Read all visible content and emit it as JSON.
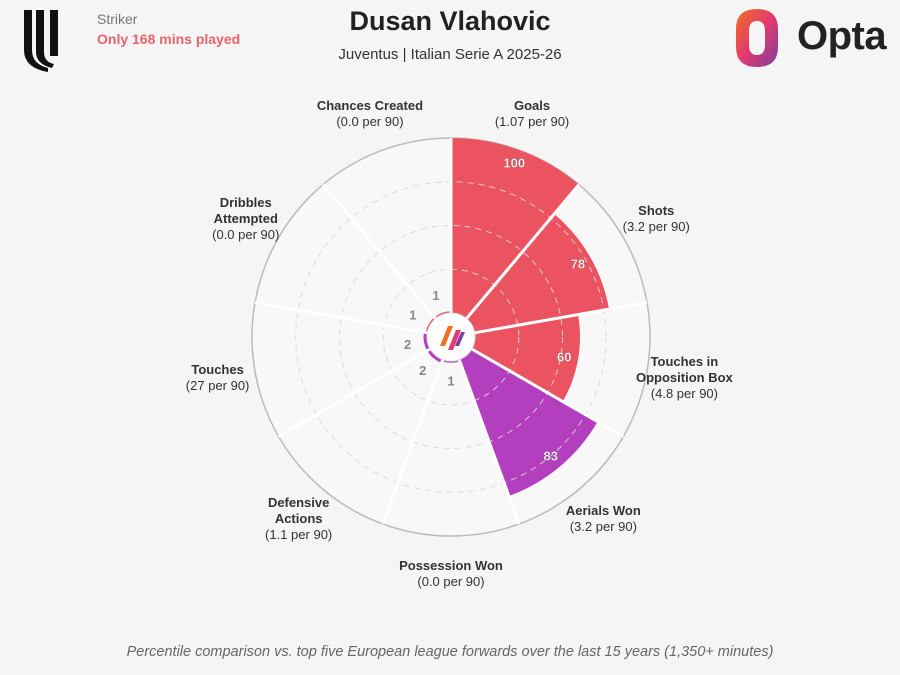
{
  "header": {
    "role": "Striker",
    "note": "Only 168 mins played",
    "player_name": "Dusan Vlahovic",
    "subtitle": "Juventus | Italian Serie A 2025-26",
    "brand": "Opta"
  },
  "footnote": "Percentile comparison vs. top five European league forwards over the last 15 years (1,350+ minutes)",
  "colors": {
    "attacking": "#ea535f",
    "aerial": "#b33fbf",
    "ring": "#bbbbbb",
    "grid_dash": "#d8d8d8",
    "background": "#f5f5f5"
  },
  "chart_data": {
    "type": "polar-bar",
    "title": "Dusan Vlahovic",
    "subtitle": "Juventus | Italian Serie A 2025-26",
    "rlim": [
      0,
      100
    ],
    "grid": true,
    "metrics": [
      {
        "name": "Goals",
        "per90": "(1.07 per 90)",
        "percentile": 100,
        "label": "100",
        "color": "#ea535f"
      },
      {
        "name": "Shots",
        "per90": "(3.2 per 90)",
        "percentile": 78,
        "label": "78",
        "color": "#ea535f"
      },
      {
        "name": "Touches in Opposition Box",
        "name_lines": [
          "Touches in",
          "Opposition Box"
        ],
        "per90": "(4.8 per 90)",
        "percentile": 60,
        "label": "60",
        "color": "#ea535f"
      },
      {
        "name": "Aerials Won",
        "per90": "(3.2 per 90)",
        "percentile": 83,
        "label": "83",
        "color": "#b33fbf"
      },
      {
        "name": "Possession Won",
        "per90": "(0.0 per 90)",
        "percentile": 1,
        "label": "1",
        "color": "#b33fbf"
      },
      {
        "name": "Defensive Actions",
        "name_lines": [
          "Defensive",
          "Actions"
        ],
        "per90": "(1.1 per 90)",
        "percentile": 2,
        "label": "2",
        "color": "#b33fbf"
      },
      {
        "name": "Touches",
        "per90": "(27 per 90)",
        "percentile": 2,
        "label": "2",
        "color": "#b33fbf"
      },
      {
        "name": "Dribbles Attempted",
        "name_lines": [
          "Dribbles",
          "Attempted"
        ],
        "per90": "(0.0 per 90)",
        "percentile": 1,
        "label": "1",
        "color": "#ea535f"
      },
      {
        "name": "Chances Created",
        "per90": "(0.0 per 90)",
        "percentile": 1,
        "label": "1",
        "color": "#ea535f"
      }
    ]
  }
}
